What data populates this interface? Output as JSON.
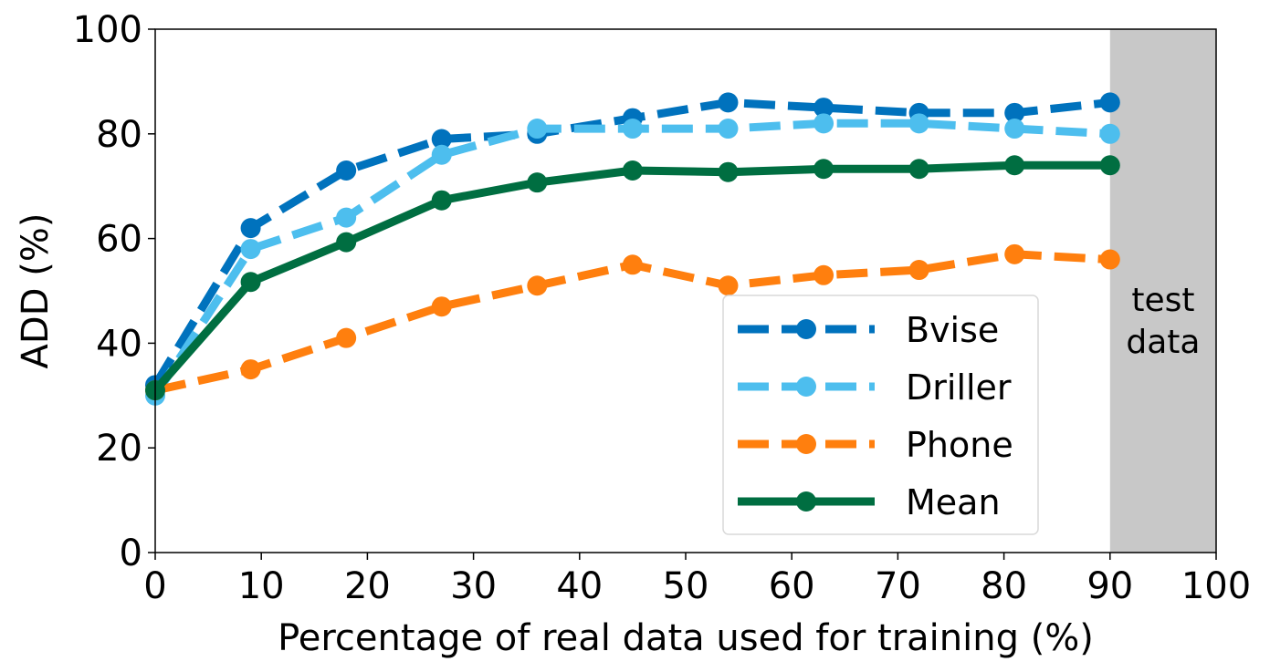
{
  "chart_data": {
    "type": "line",
    "title": "",
    "xlabel": "Percentage of real data used for training (%)",
    "ylabel": "ADD (%)",
    "xlim": [
      0,
      100
    ],
    "ylim": [
      0,
      100
    ],
    "xticks": [
      0,
      10,
      20,
      30,
      40,
      50,
      60,
      70,
      80,
      90,
      100
    ],
    "yticks": [
      0,
      20,
      40,
      60,
      80,
      100
    ],
    "x": [
      0,
      9,
      18,
      27,
      36,
      45,
      54,
      63,
      72,
      81,
      90
    ],
    "series": [
      {
        "name": "Bvise",
        "color": "#0072BD",
        "style": "dashed",
        "values": [
          32,
          62,
          73,
          79,
          80,
          83,
          86,
          85,
          84,
          84,
          86
        ]
      },
      {
        "name": "Driller",
        "color": "#4DBEEE",
        "style": "dashed",
        "values": [
          30,
          58,
          64,
          76,
          81,
          81,
          81,
          82,
          82,
          81,
          80
        ]
      },
      {
        "name": "Phone",
        "color": "#FF7F0E",
        "style": "dashed",
        "values": [
          31,
          35,
          41,
          47,
          51,
          55,
          51,
          53,
          54,
          57,
          56
        ]
      },
      {
        "name": "Mean",
        "color": "#006E41",
        "style": "solid",
        "values": [
          31,
          51.7,
          59.3,
          67.3,
          70.7,
          73,
          72.7,
          73.3,
          73.3,
          74,
          74
        ]
      }
    ],
    "shaded_region": {
      "x": [
        90,
        100
      ],
      "color": "#C8C8C8",
      "label_line1": "test",
      "label_line2": "data"
    },
    "legend_position": "lower-center-right",
    "grid": false
  }
}
